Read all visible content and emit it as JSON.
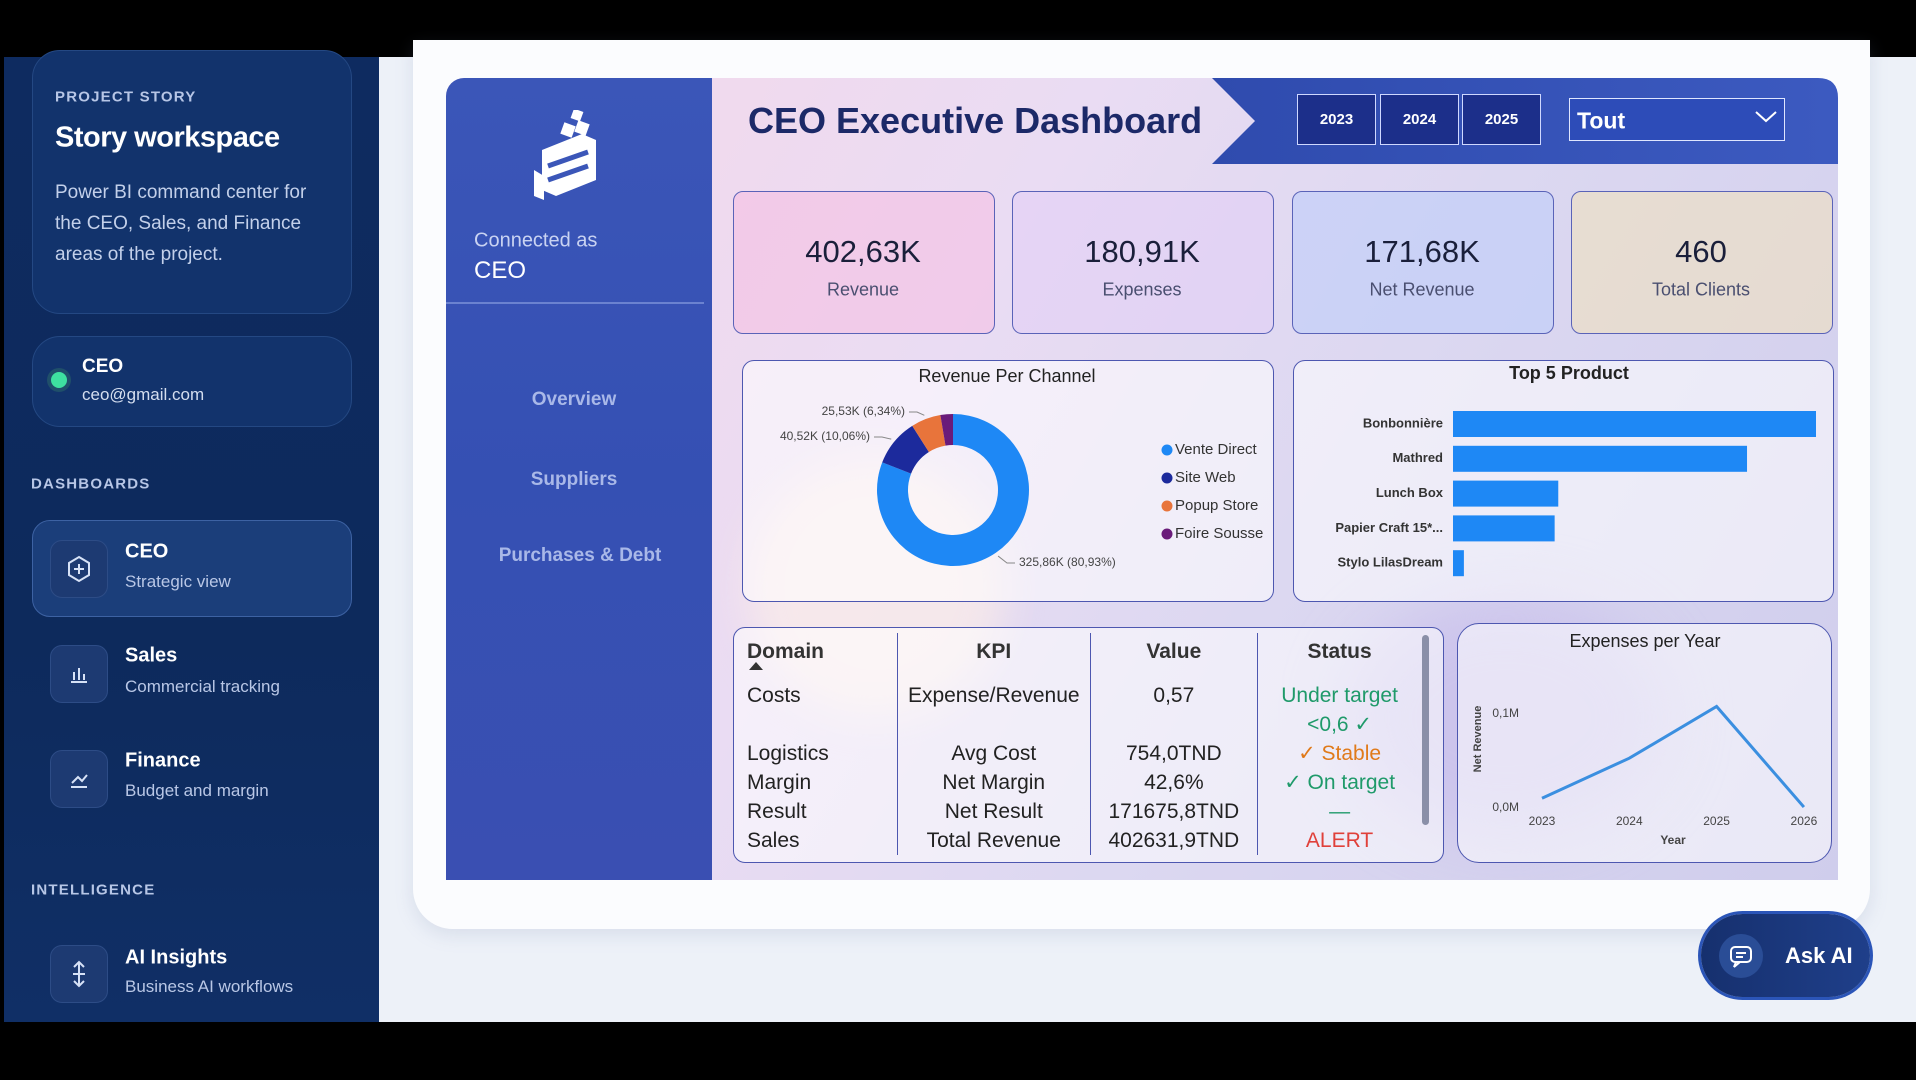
{
  "sidebar": {
    "story": {
      "label": "PROJECT STORY",
      "title": "Story workspace",
      "description": "Power BI command center for the CEO, Sales, and Finance areas of the project."
    },
    "user": {
      "name": "CEO",
      "email": "ceo@gmail.com"
    },
    "dashboards_label": "DASHBOARDS",
    "dashboards": [
      {
        "title": "CEO",
        "subtitle": "Strategic view"
      },
      {
        "title": "Sales",
        "subtitle": "Commercial tracking"
      },
      {
        "title": "Finance",
        "subtitle": "Budget and margin"
      }
    ],
    "intelligence_label": "INTELLIGENCE",
    "intelligence": [
      {
        "title": "AI Insights",
        "subtitle": "Business AI workflows"
      }
    ]
  },
  "dashboard": {
    "connected_label": "Connected as",
    "role": "CEO",
    "nav": [
      "Overview",
      "Suppliers",
      "Purchases & Debt"
    ],
    "title": "CEO Executive Dashboard",
    "years": [
      "2023",
      "2024",
      "2025"
    ],
    "dropdown": "Tout",
    "kpis": [
      {
        "value": "402,63K",
        "label": "Revenue"
      },
      {
        "value": "180,91K",
        "label": "Expenses"
      },
      {
        "value": "171,68K",
        "label": "Net Revenue"
      },
      {
        "value": "460",
        "label": "Total Clients"
      }
    ],
    "donut_chart": {
      "type": "donut",
      "title": "Revenue Per Channel",
      "categories": [
        "Vente Direct",
        "Site Web",
        "Popup Store",
        "Foire Sousse"
      ],
      "values": [
        325.86,
        40.52,
        25.53,
        10.72
      ],
      "value_labels": [
        "325,86K (80,93%)",
        "40,52K (10,06%)",
        "25,53K (6,34%)",
        null
      ],
      "colors": [
        "#1e88f5",
        "#1c2a9c",
        "#e8743b",
        "#6a1b7a"
      ]
    },
    "bar_chart": {
      "type": "hbar",
      "title": "Top 5 Product",
      "categories": [
        "Bonbonnière",
        "Mathred",
        "Lunch Box",
        "Papier Craft 15*...",
        "Stylo LilasDream"
      ],
      "values": [
        100,
        81,
        29,
        28,
        3
      ],
      "xlim": [
        0,
        100
      ],
      "color": "#1e88f5"
    },
    "table": {
      "columns": [
        "Domain",
        "KPI",
        "Value",
        "Status"
      ],
      "rows": [
        [
          "Costs",
          "Expense/Revenue",
          "0,57",
          "Under target <0,6 ✓"
        ],
        [
          "Logistics",
          "Avg Cost",
          "754,0TND",
          "✓ Stable"
        ],
        [
          "Margin",
          "Net Margin",
          "42,6%",
          "✓ On target"
        ],
        [
          "Result",
          "Net Result",
          "171675,8TND",
          "—"
        ],
        [
          "Sales",
          "Total Revenue",
          "402631,9TND",
          "ALERT"
        ]
      ],
      "status_colors": [
        "#1f9a6a",
        "#e07a1a",
        "#1f9a6a",
        "#1f9a6a",
        "#e0403a"
      ]
    },
    "line_chart": {
      "type": "line",
      "title": "Expenses per Year",
      "categories": [
        "2023",
        "2024",
        "2025",
        "2026"
      ],
      "values": [
        0.0104,
        0.053,
        0.108,
        0.001
      ],
      "ylim": [
        0,
        0.15
      ],
      "yticks": [
        {
          "value": 0,
          "label": "0,0M"
        },
        {
          "value": 0.1,
          "label": "0,1M"
        }
      ],
      "y_label": "Net Revenue",
      "x_label": "Year",
      "color": "#3b8fe0",
      "grid": false
    }
  },
  "ask_ai": "Ask AI"
}
